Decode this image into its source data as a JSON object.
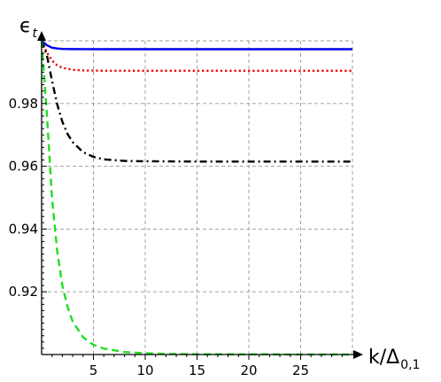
{
  "chart_data": {
    "type": "line",
    "title": "",
    "ylabel": "ϵ",
    "ylabel_subscript": "t",
    "xlabel": "k/Δ",
    "xlabel_subscript": "0,1",
    "xlim": [
      0,
      30
    ],
    "ylim": [
      0.9,
      1.0
    ],
    "grid": true,
    "x_ticks": [
      5,
      10,
      15,
      20,
      25
    ],
    "x_tick_labels": [
      "5",
      "10",
      "15",
      "20",
      "25"
    ],
    "y_ticks": [
      0.92,
      0.94,
      0.96,
      0.98
    ],
    "y_tick_labels": [
      "0.92",
      "0.94",
      "0.96",
      "0.98"
    ],
    "series": [
      {
        "color": "#0000ee",
        "style": "solid",
        "x": [
          0,
          0.5,
          1,
          1.5,
          2,
          3,
          4,
          6,
          10,
          15,
          20,
          25,
          30
        ],
        "y": [
          1.0,
          0.9986,
          0.9978,
          0.99755,
          0.9974,
          0.99735,
          0.99733,
          0.99732,
          0.99732,
          0.99732,
          0.99732,
          0.99732,
          0.99732
        ]
      },
      {
        "color": "#ee0000",
        "style": "dotted",
        "x": [
          0,
          0.5,
          1,
          1.5,
          2,
          3,
          4,
          6,
          10,
          15,
          20,
          25,
          30
        ],
        "y": [
          1.0,
          0.9963,
          0.9937,
          0.9922,
          0.9914,
          0.99075,
          0.99055,
          0.99045,
          0.99043,
          0.99043,
          0.99043,
          0.99043,
          0.99043
        ]
      },
      {
        "color": "#000000",
        "style": "dashdot",
        "x": [
          0,
          0.5,
          1,
          1.5,
          2,
          2.5,
          3,
          4,
          5,
          6,
          8,
          10,
          15,
          20,
          25,
          30
        ],
        "y": [
          1.0,
          0.9955,
          0.9873,
          0.9798,
          0.9742,
          0.9703,
          0.9677,
          0.9645,
          0.963,
          0.9622,
          0.9617,
          0.9616,
          0.9615,
          0.9615,
          0.9615,
          0.9615
        ]
      },
      {
        "color": "#22dd22",
        "style": "dashed",
        "x": [
          0,
          0.5,
          1,
          1.5,
          2,
          2.5,
          3,
          4,
          5,
          6,
          8,
          10,
          12,
          15,
          20,
          25,
          30
        ],
        "y": [
          1.0,
          0.977,
          0.95,
          0.933,
          0.922,
          0.9152,
          0.9105,
          0.9055,
          0.9031,
          0.9019,
          0.9008,
          0.9004,
          0.9002,
          0.9001,
          0.90005,
          0.90002,
          0.9
        ]
      }
    ]
  }
}
